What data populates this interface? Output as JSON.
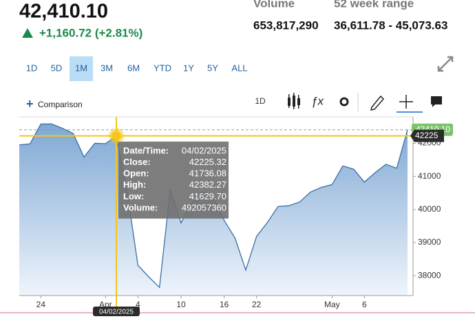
{
  "header": {
    "price": "42,410.10",
    "change": "+1,160.72 (+2.81%)",
    "volume_label": "Volume",
    "volume": "653,817,290",
    "range_label": "52 week range",
    "range": "36,611.78 - 45,073.63"
  },
  "ranges": [
    "1D",
    "5D",
    "1M",
    "3M",
    "6M",
    "YTD",
    "1Y",
    "5Y",
    "ALL"
  ],
  "active_range": "1M",
  "toolbar": {
    "comparison": "Comparison",
    "interval": "1D"
  },
  "tooltip": [
    {
      "label": "Date/Time:",
      "value": "04/02/2025"
    },
    {
      "label": "Close:",
      "value": "42225.32"
    },
    {
      "label": "Open:",
      "value": "41736.08"
    },
    {
      "label": "High:",
      "value": "42382.27"
    },
    {
      "label": "Low:",
      "value": "41629.70"
    },
    {
      "label": "Volume:",
      "value": "492057360"
    }
  ],
  "crosshair_date": "04/02/2025",
  "crosshair_price": "42225",
  "last_price": "42410.10",
  "chart_data": {
    "type": "area",
    "color": "#3a6ea5",
    "categories": [
      null,
      null,
      "24",
      null,
      null,
      null,
      null,
      null,
      "Apr",
      null,
      null,
      "4",
      null,
      null,
      null,
      "10",
      null,
      null,
      null,
      "16",
      null,
      null,
      "22",
      null,
      null,
      null,
      null,
      null,
      null,
      "May",
      null,
      null,
      "6",
      null,
      null,
      null,
      null
    ],
    "values": [
      41953,
      41985,
      42583,
      42587,
      42455,
      42300,
      41584,
      42002,
      41990,
      42225,
      40546,
      38315,
      37966,
      37646,
      40608,
      39594,
      40213,
      40525,
      40369,
      39669,
      39142,
      38171,
      39187,
      39607,
      40093,
      40114,
      40228,
      40528,
      40669,
      40753,
      41317,
      41219,
      40829,
      41114,
      41368,
      41249,
      42410
    ],
    "ylim": [
      37400,
      42800
    ],
    "yticks": [
      38000,
      39000,
      40000,
      41000,
      42000
    ]
  }
}
